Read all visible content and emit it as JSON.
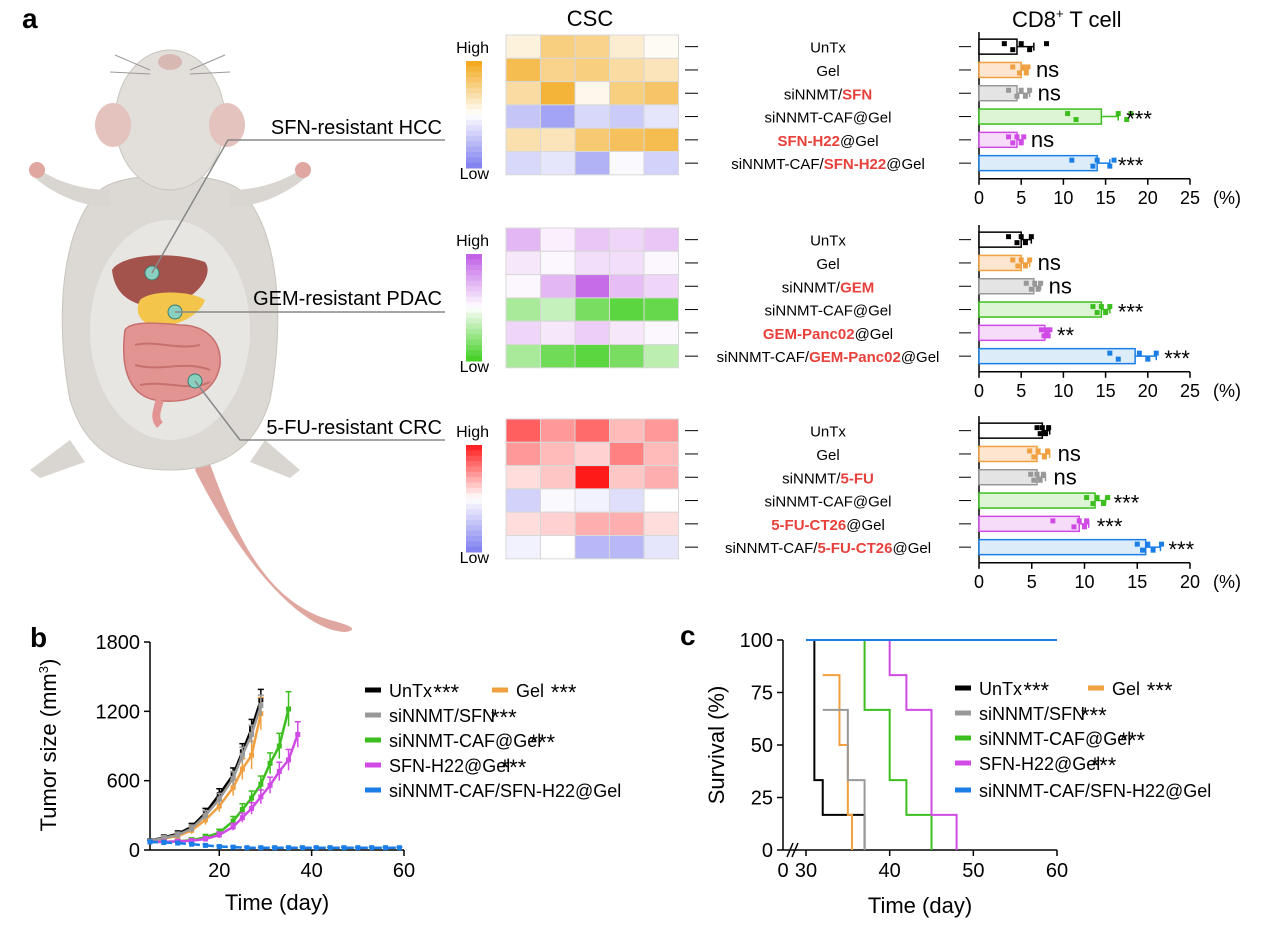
{
  "panel_labels": {
    "a": "a",
    "b": "b",
    "c": "c"
  },
  "mouse": {
    "tumor_labels": [
      "SFN-resistant HCC",
      "GEM-resistant PDAC",
      "5-FU-resistant CRC"
    ]
  },
  "headers": {
    "csc": "CSC",
    "cd8_main": "CD8",
    "cd8_sup": "+",
    "cd8_rest": " T cell"
  },
  "chart_data": [
    {
      "type": "heatmap",
      "title": "CSC",
      "cohort": "SFN-resistant HCC",
      "scale_labels": {
        "high": "High",
        "low": "Low"
      },
      "colors": {
        "high": "#f2a516",
        "low": "#7d7df0"
      },
      "row_labels": [
        [
          {
            "t": "UnTx",
            "red": false
          }
        ],
        [
          {
            "t": "Gel",
            "red": false
          }
        ],
        [
          {
            "t": "siNNMT/",
            "red": false
          },
          {
            "t": "SFN",
            "red": true
          }
        ],
        [
          {
            "t": "siNNMT-CAF@Gel",
            "red": false
          }
        ],
        [
          {
            "t": "SFN-H22",
            "red": true
          },
          {
            "t": "@Gel",
            "red": false
          }
        ],
        [
          {
            "t": "siNNMT-CAF/",
            "red": false
          },
          {
            "t": "SFN-H22",
            "red": true
          },
          {
            "t": "@Gel",
            "red": false
          }
        ]
      ],
      "values": [
        [
          0.15,
          0.55,
          0.5,
          0.2,
          0.05
        ],
        [
          0.75,
          0.5,
          0.55,
          0.4,
          0.3
        ],
        [
          0.4,
          0.85,
          0.08,
          0.55,
          0.65
        ],
        [
          -0.45,
          -0.7,
          -0.3,
          -0.4,
          -0.2
        ],
        [
          0.35,
          0.3,
          0.6,
          0.7,
          0.75
        ],
        [
          -0.3,
          -0.2,
          -0.6,
          -0.05,
          -0.35
        ]
      ]
    },
    {
      "type": "heatmap",
      "title": "CSC",
      "cohort": "GEM-resistant PDAC",
      "scale_labels": {
        "high": "High",
        "low": "Low"
      },
      "colors": {
        "high": "#c05ce6",
        "low": "#3fcf1e"
      },
      "row_labels": [
        [
          {
            "t": "UnTx",
            "red": false
          }
        ],
        [
          {
            "t": "Gel",
            "red": false
          }
        ],
        [
          {
            "t": "siNNMT/",
            "red": false
          },
          {
            "t": "GEM",
            "red": true
          }
        ],
        [
          {
            "t": "siNNMT-CAF@Gel",
            "red": false
          }
        ],
        [
          {
            "t": "GEM-Panc02",
            "red": true
          },
          {
            "t": "@Gel",
            "red": false
          }
        ],
        [
          {
            "t": "siNNMT-CAF/",
            "red": false
          },
          {
            "t": "GEM-Panc02",
            "red": true
          },
          {
            "t": "@Gel",
            "red": false
          }
        ]
      ],
      "values": [
        [
          0.45,
          0.1,
          0.35,
          0.25,
          0.35
        ],
        [
          0.15,
          0.05,
          0.2,
          0.2,
          0.05
        ],
        [
          0.05,
          0.45,
          0.9,
          0.4,
          0.25
        ],
        [
          -0.45,
          -0.3,
          -0.7,
          -0.85,
          -0.8
        ],
        [
          0.25,
          0.15,
          0.3,
          0.15,
          0.05
        ],
        [
          -0.45,
          -0.75,
          -0.85,
          -0.7,
          -0.35
        ]
      ]
    },
    {
      "type": "heatmap",
      "title": "CSC",
      "cohort": "5-FU-resistant CRC",
      "scale_labels": {
        "high": "High",
        "low": "Low"
      },
      "colors": {
        "high": "#ff1a1a",
        "low": "#7d7df0"
      },
      "row_labels": [
        [
          {
            "t": "UnTx",
            "red": false
          }
        ],
        [
          {
            "t": "Gel",
            "red": false
          }
        ],
        [
          {
            "t": "siNNMT/",
            "red": false
          },
          {
            "t": "5-FU",
            "red": true
          }
        ],
        [
          {
            "t": "siNNMT-CAF@Gel",
            "red": false
          }
        ],
        [
          {
            "t": "5-FU-CT26",
            "red": true
          },
          {
            "t": "@Gel",
            "red": false
          }
        ],
        [
          {
            "t": "siNNMT-CAF/",
            "red": false
          },
          {
            "t": "5-FU-CT26",
            "red": true
          },
          {
            "t": "@Gel",
            "red": false
          }
        ]
      ],
      "values": [
        [
          0.7,
          0.45,
          0.65,
          0.3,
          0.45
        ],
        [
          0.45,
          0.3,
          0.2,
          0.55,
          0.3
        ],
        [
          0.15,
          0.25,
          1.0,
          0.25,
          0.35
        ],
        [
          -0.35,
          -0.05,
          -0.1,
          -0.25,
          0.0
        ],
        [
          0.15,
          0.2,
          0.35,
          0.35,
          0.15
        ],
        [
          -0.1,
          0.0,
          -0.55,
          -0.55,
          -0.2
        ]
      ]
    },
    {
      "type": "bar",
      "orientation": "horizontal",
      "title": "CD8+ T cell",
      "cohort": "SFN-resistant HCC",
      "categories": [
        "UnTx",
        "Gel",
        "siNNMT/SFN",
        "siNNMT-CAF@Gel",
        "SFN-H22@Gel",
        "siNNMT-CAF/SFN-H22@Gel"
      ],
      "values": [
        4.5,
        5.0,
        4.5,
        14.5,
        4.5,
        14.0
      ],
      "errors": [
        2.0,
        0.8,
        1.5,
        2.0,
        0.7,
        1.5
      ],
      "points": [
        [
          3,
          4,
          5,
          6,
          8
        ],
        [
          4,
          4.8,
          5.2,
          5.6,
          5.8
        ],
        [
          3.5,
          4.5,
          5,
          5.5,
          6
        ],
        [
          10.5,
          11.5,
          16.5,
          17.5,
          18
        ],
        [
          3.5,
          4,
          4.5,
          5,
          5.3
        ],
        [
          11,
          13.5,
          14,
          15.5,
          16
        ]
      ],
      "significance": [
        "",
        "ns",
        "ns",
        "***",
        "ns",
        "***"
      ],
      "colors": [
        "#000000",
        "#f0a040",
        "#999999",
        "#3cbf1e",
        "#d04be6",
        "#1a7ee6"
      ],
      "fills": [
        "#ffffff",
        "#fde6cf",
        "#e4e4e4",
        "#ddf5d4",
        "#f6dcf9",
        "#dcecf8"
      ],
      "xlim": [
        0,
        25
      ],
      "xticks": [
        0,
        5,
        10,
        15,
        20,
        25
      ],
      "xunit": "(%)"
    },
    {
      "type": "bar",
      "orientation": "horizontal",
      "title": "CD8+ T cell",
      "cohort": "GEM-resistant PDAC",
      "categories": [
        "UnTx",
        "Gel",
        "siNNMT/GEM",
        "siNNMT-CAF@Gel",
        "GEM-Panc02@Gel",
        "siNNMT-CAF/GEM-Panc02@Gel"
      ],
      "values": [
        5.0,
        5.0,
        6.5,
        14.5,
        7.8,
        18.5
      ],
      "errors": [
        1.2,
        1.0,
        0.8,
        1.0,
        0.5,
        2.5
      ],
      "points": [
        [
          3.5,
          4.5,
          5,
          5.5,
          6.2
        ],
        [
          4,
          4.6,
          5,
          5.5,
          6
        ],
        [
          5.6,
          6.2,
          6.6,
          7,
          7.3
        ],
        [
          13.5,
          14,
          14.5,
          15,
          15.5
        ],
        [
          7.4,
          7.7,
          8,
          8.2,
          8.4
        ],
        [
          15.5,
          16.5,
          19,
          20,
          21
        ]
      ],
      "significance": [
        "",
        "ns",
        "ns",
        "***",
        "**",
        "***"
      ],
      "colors": [
        "#000000",
        "#f0a040",
        "#999999",
        "#3cbf1e",
        "#d04be6",
        "#1a7ee6"
      ],
      "fills": [
        "#ffffff",
        "#fde6cf",
        "#e4e4e4",
        "#ddf5d4",
        "#f6dcf9",
        "#dcecf8"
      ],
      "xlim": [
        0,
        25
      ],
      "xticks": [
        0,
        5,
        10,
        15,
        20,
        25
      ],
      "xunit": "(%)"
    },
    {
      "type": "bar",
      "orientation": "horizontal",
      "title": "CD8+ T cell",
      "cohort": "5-FU-resistant CRC",
      "categories": [
        "UnTx",
        "Gel",
        "siNNMT/5-FU",
        "siNNMT-CAF@Gel",
        "5-FU-CT26@Gel",
        "siNNMT-CAF/5-FU-CT26@Gel"
      ],
      "values": [
        6.0,
        5.5,
        5.5,
        11.0,
        9.5,
        15.8
      ],
      "errors": [
        0.7,
        1.2,
        0.8,
        1.0,
        0.9,
        1.4
      ],
      "points": [
        [
          5.5,
          5.8,
          6,
          6.3,
          6.6
        ],
        [
          4.8,
          5.2,
          5.6,
          6.2,
          6.5
        ],
        [
          4.9,
          5.2,
          5.5,
          5.8,
          6.1
        ],
        [
          10.2,
          10.8,
          11.2,
          11.8,
          12.2
        ],
        [
          7,
          9,
          9.5,
          10,
          10.2
        ],
        [
          15,
          15.5,
          16,
          16.5,
          17.3
        ]
      ],
      "significance": [
        "",
        "ns",
        "ns",
        "***",
        "***",
        "***"
      ],
      "colors": [
        "#000000",
        "#f0a040",
        "#999999",
        "#3cbf1e",
        "#d04be6",
        "#1a7ee6"
      ],
      "fills": [
        "#ffffff",
        "#fde6cf",
        "#e4e4e4",
        "#ddf5d4",
        "#f6dcf9",
        "#dcecf8"
      ],
      "xlim": [
        0,
        20
      ],
      "xticks": [
        0,
        5,
        10,
        15,
        20
      ],
      "xunit": "(%)"
    },
    {
      "type": "line",
      "xlabel": "Time (day)",
      "ylabel_main": "Tumor size (mm",
      "ylabel_sup": "3",
      "ylabel_end": ")",
      "xlim": [
        5,
        60
      ],
      "ylim": [
        0,
        1800
      ],
      "xticks": [
        20,
        40,
        60
      ],
      "yticks": [
        0,
        600,
        1200,
        1800
      ],
      "legend": [
        {
          "name": "UnTx",
          "sig": "***"
        },
        {
          "name": "Gel",
          "sig": "***"
        },
        {
          "name": "siNNMT/SFN",
          "sig": "***"
        },
        {
          "name": "siNNMT-CAF@Gel",
          "sig": "***"
        },
        {
          "name": "SFN-H22@Gel",
          "sig": "***"
        },
        {
          "name": "siNNMT-CAF/SFN-H22@Gel",
          "sig": ""
        }
      ],
      "series": [
        {
          "color": "#000000",
          "x": [
            5,
            8,
            11,
            14,
            17,
            20,
            23,
            25,
            27,
            29
          ],
          "y": [
            80,
            110,
            140,
            200,
            320,
            480,
            650,
            850,
            1050,
            1300
          ],
          "err": [
            15,
            20,
            25,
            30,
            40,
            50,
            60,
            70,
            80,
            90
          ]
        },
        {
          "color": "#f0a040",
          "x": [
            5,
            8,
            11,
            14,
            17,
            20,
            23,
            25,
            27,
            29
          ],
          "y": [
            75,
            100,
            120,
            170,
            260,
            380,
            540,
            700,
            820,
            1180
          ],
          "err": [
            15,
            20,
            25,
            30,
            40,
            50,
            70,
            90,
            120,
            140
          ]
        },
        {
          "color": "#999999",
          "x": [
            5,
            8,
            11,
            14,
            17,
            20,
            23,
            25,
            27,
            29
          ],
          "y": [
            78,
            105,
            130,
            185,
            300,
            440,
            620,
            820,
            1000,
            1250
          ],
          "err": [
            15,
            20,
            25,
            30,
            40,
            50,
            60,
            70,
            80,
            90
          ]
        },
        {
          "color": "#3cbf1e",
          "x": [
            5,
            8,
            11,
            14,
            17,
            20,
            23,
            25,
            27,
            29,
            31,
            33,
            35
          ],
          "y": [
            70,
            70,
            75,
            85,
            110,
            150,
            250,
            350,
            450,
            570,
            750,
            900,
            1220
          ],
          "err": [
            15,
            15,
            15,
            20,
            25,
            30,
            40,
            50,
            60,
            70,
            90,
            110,
            150
          ]
        },
        {
          "color": "#d04be6",
          "x": [
            5,
            8,
            11,
            14,
            17,
            20,
            23,
            25,
            27,
            29,
            31,
            33,
            35,
            37
          ],
          "y": [
            70,
            70,
            75,
            80,
            95,
            130,
            200,
            280,
            360,
            460,
            560,
            680,
            780,
            1000
          ],
          "err": [
            15,
            15,
            15,
            15,
            20,
            25,
            30,
            40,
            50,
            60,
            70,
            80,
            90,
            110
          ]
        },
        {
          "color": "#1a7ee6",
          "dashed": true,
          "x": [
            5,
            8,
            11,
            14,
            17,
            20,
            23,
            26,
            29,
            32,
            35,
            38,
            41,
            44,
            47,
            50,
            53,
            56,
            59
          ],
          "y": [
            70,
            65,
            60,
            50,
            40,
            30,
            25,
            20,
            20,
            20,
            20,
            20,
            20,
            20,
            20,
            20,
            20,
            20,
            20
          ],
          "err": [
            10,
            10,
            10,
            10,
            8,
            6,
            5,
            4,
            4,
            4,
            4,
            4,
            4,
            4,
            4,
            4,
            4,
            4,
            4
          ]
        }
      ]
    },
    {
      "type": "line",
      "step": true,
      "xlabel": "Time (day)",
      "ylabel": "Survival (%)",
      "xlim": [
        30,
        60
      ],
      "ylim": [
        0,
        100
      ],
      "xticks": [
        30,
        40,
        50,
        60
      ],
      "xtick_zero": "0",
      "yticks": [
        0,
        25,
        50,
        75,
        100
      ],
      "legend": [
        {
          "name": "UnTx",
          "sig": "***"
        },
        {
          "name": "Gel",
          "sig": "***"
        },
        {
          "name": "siNNMT/SFN",
          "sig": "***"
        },
        {
          "name": "siNNMT-CAF@Gel",
          "sig": "***"
        },
        {
          "name": "SFN-H22@Gel",
          "sig": "***"
        },
        {
          "name": "siNNMT-CAF/SFN-H22@Gel",
          "sig": ""
        }
      ],
      "series": [
        {
          "color": "#000000",
          "x": [
            31,
            31,
            32,
            32,
            33,
            33,
            37,
            37
          ],
          "y": [
            100,
            33.3,
            33.3,
            16.7,
            16.7,
            16.7,
            16.7,
            0
          ]
        },
        {
          "color": "#f0a040",
          "x": [
            32,
            32,
            34,
            34,
            35,
            35,
            35.5,
            35.5
          ],
          "y": [
            83.3,
            83.3,
            83.3,
            50,
            50,
            16.7,
            16.7,
            0
          ]
        },
        {
          "color": "#999999",
          "x": [
            32,
            32,
            35,
            35,
            37,
            37,
            37,
            37
          ],
          "y": [
            66.7,
            66.7,
            66.7,
            33.3,
            33.3,
            16.7,
            16.7,
            0
          ]
        },
        {
          "color": "#3cbf1e",
          "x": [
            37,
            37,
            40,
            40,
            42,
            42,
            45,
            45
          ],
          "y": [
            100,
            66.7,
            66.7,
            33.3,
            33.3,
            16.7,
            16.7,
            0
          ]
        },
        {
          "color": "#d04be6",
          "x": [
            40,
            40,
            42,
            42,
            45,
            45,
            48,
            48
          ],
          "y": [
            100,
            83.3,
            83.3,
            66.7,
            66.7,
            16.7,
            16.7,
            0
          ]
        },
        {
          "color": "#1a7ee6",
          "x": [
            30,
            60
          ],
          "y": [
            100,
            100
          ]
        }
      ]
    }
  ]
}
